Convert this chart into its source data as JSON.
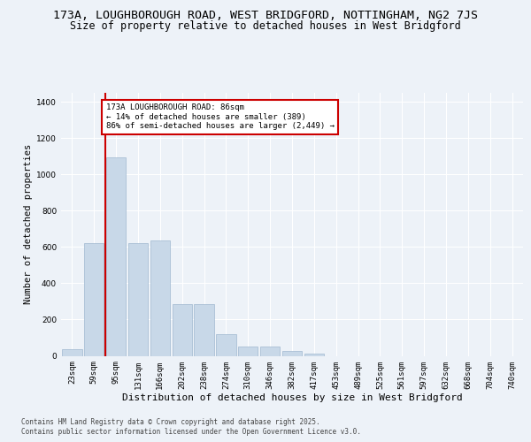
{
  "title_line1": "173A, LOUGHBOROUGH ROAD, WEST BRIDGFORD, NOTTINGHAM, NG2 7JS",
  "title_line2": "Size of property relative to detached houses in West Bridgford",
  "xlabel": "Distribution of detached houses by size in West Bridgford",
  "ylabel": "Number of detached properties",
  "bar_labels": [
    "23sqm",
    "59sqm",
    "95sqm",
    "131sqm",
    "166sqm",
    "202sqm",
    "238sqm",
    "274sqm",
    "310sqm",
    "346sqm",
    "382sqm",
    "417sqm",
    "453sqm",
    "489sqm",
    "525sqm",
    "561sqm",
    "597sqm",
    "632sqm",
    "668sqm",
    "704sqm",
    "740sqm"
  ],
  "bar_values": [
    35,
    622,
    1095,
    622,
    638,
    285,
    285,
    120,
    50,
    50,
    25,
    10,
    0,
    0,
    0,
    0,
    0,
    0,
    0,
    0,
    0
  ],
  "bar_color": "#c8d8e8",
  "bar_edgecolor": "#a0b8d0",
  "vline_x": 1.5,
  "annotation_text": "173A LOUGHBOROUGH ROAD: 86sqm\n← 14% of detached houses are smaller (389)\n86% of semi-detached houses are larger (2,449) →",
  "annotation_box_color": "#ffffff",
  "annotation_box_edgecolor": "#cc0000",
  "vline_color": "#cc0000",
  "ylim": [
    0,
    1450
  ],
  "yticks": [
    0,
    200,
    400,
    600,
    800,
    1000,
    1200,
    1400
  ],
  "bg_color": "#edf2f8",
  "footer_line1": "Contains HM Land Registry data © Crown copyright and database right 2025.",
  "footer_line2": "Contains public sector information licensed under the Open Government Licence v3.0.",
  "title_fontsize": 9.5,
  "subtitle_fontsize": 8.5,
  "axis_label_fontsize": 7.5,
  "tick_fontsize": 6.5,
  "footer_fontsize": 5.5
}
